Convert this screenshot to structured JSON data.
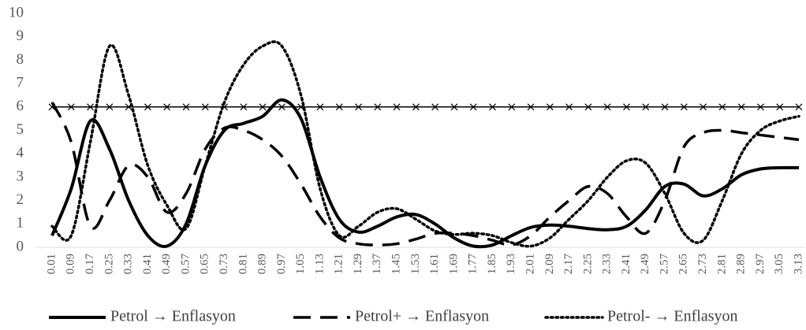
{
  "chart_data": {
    "type": "line",
    "categories": [
      "0.01",
      "0.09",
      "0.17",
      "0.25",
      "0.33",
      "0.41",
      "0.49",
      "0.57",
      "0.65",
      "0.73",
      "0.81",
      "0.89",
      "0.97",
      "1.05",
      "1.13",
      "1.21",
      "1.29",
      "1.37",
      "1.45",
      "1.53",
      "1.61",
      "1.69",
      "1.77",
      "1.85",
      "1.93",
      "2.01",
      "2.09",
      "2.17",
      "2.25",
      "2.33",
      "2.41",
      "2.49",
      "2.57",
      "2.65",
      "2.73",
      "2.81",
      "2.89",
      "2.97",
      "3.05",
      "3.13"
    ],
    "series": [
      {
        "name": "Petrol → Enflasyon",
        "color": "#000000",
        "style": "solid",
        "values": [
          0.5,
          2.5,
          5.4,
          4.2,
          2.0,
          0.5,
          0.05,
          1.0,
          3.5,
          5.0,
          5.3,
          5.6,
          6.3,
          5.5,
          3.0,
          1.2,
          0.65,
          0.9,
          1.3,
          1.4,
          1.0,
          0.4,
          0.05,
          0.1,
          0.5,
          0.85,
          0.95,
          0.9,
          0.8,
          0.75,
          0.9,
          1.6,
          2.6,
          2.7,
          2.2,
          2.5,
          3.1,
          3.35,
          3.4,
          3.4
        ]
      },
      {
        "name": "Petrol+ → Enflasyon",
        "color": "#000000",
        "style": "dashed",
        "values": [
          6.2,
          4.5,
          0.9,
          2.0,
          3.5,
          3.0,
          1.5,
          2.3,
          4.2,
          5.1,
          5.0,
          4.6,
          3.9,
          2.7,
          1.3,
          0.4,
          0.15,
          0.1,
          0.15,
          0.35,
          0.6,
          0.6,
          0.5,
          0.3,
          0.1,
          0.5,
          1.3,
          2.0,
          2.6,
          2.3,
          1.3,
          0.6,
          2.0,
          4.3,
          4.9,
          5.0,
          4.9,
          4.8,
          4.7,
          4.6
        ]
      },
      {
        "name": "Petrol- → Enflasyon",
        "color": "#000000",
        "style": "dotted",
        "values": [
          0.9,
          0.5,
          4.5,
          8.6,
          6.5,
          3.5,
          1.8,
          0.8,
          3.5,
          6.2,
          7.8,
          8.6,
          8.6,
          6.5,
          2.5,
          0.5,
          0.9,
          1.5,
          1.65,
          1.2,
          0.7,
          0.55,
          0.6,
          0.5,
          0.2,
          0.05,
          0.4,
          1.2,
          2.0,
          3.0,
          3.7,
          3.6,
          2.3,
          0.6,
          0.3,
          2.0,
          4.0,
          5.0,
          5.4,
          5.6
        ]
      },
      {
        "color": "#000000",
        "style": "marker-x",
        "values": [
          6,
          6,
          6,
          6,
          6,
          6,
          6,
          6,
          6,
          6,
          6,
          6,
          6,
          6,
          6,
          6,
          6,
          6,
          6,
          6,
          6,
          6,
          6,
          6,
          6,
          6,
          6,
          6,
          6,
          6,
          6,
          6,
          6,
          6,
          6,
          6,
          6,
          6,
          6,
          6
        ]
      }
    ],
    "ylim": [
      0,
      10
    ],
    "yticks": [
      0,
      1,
      2,
      3,
      4,
      5,
      6,
      7,
      8,
      9,
      10
    ],
    "grid": false,
    "legend": "bottom"
  }
}
